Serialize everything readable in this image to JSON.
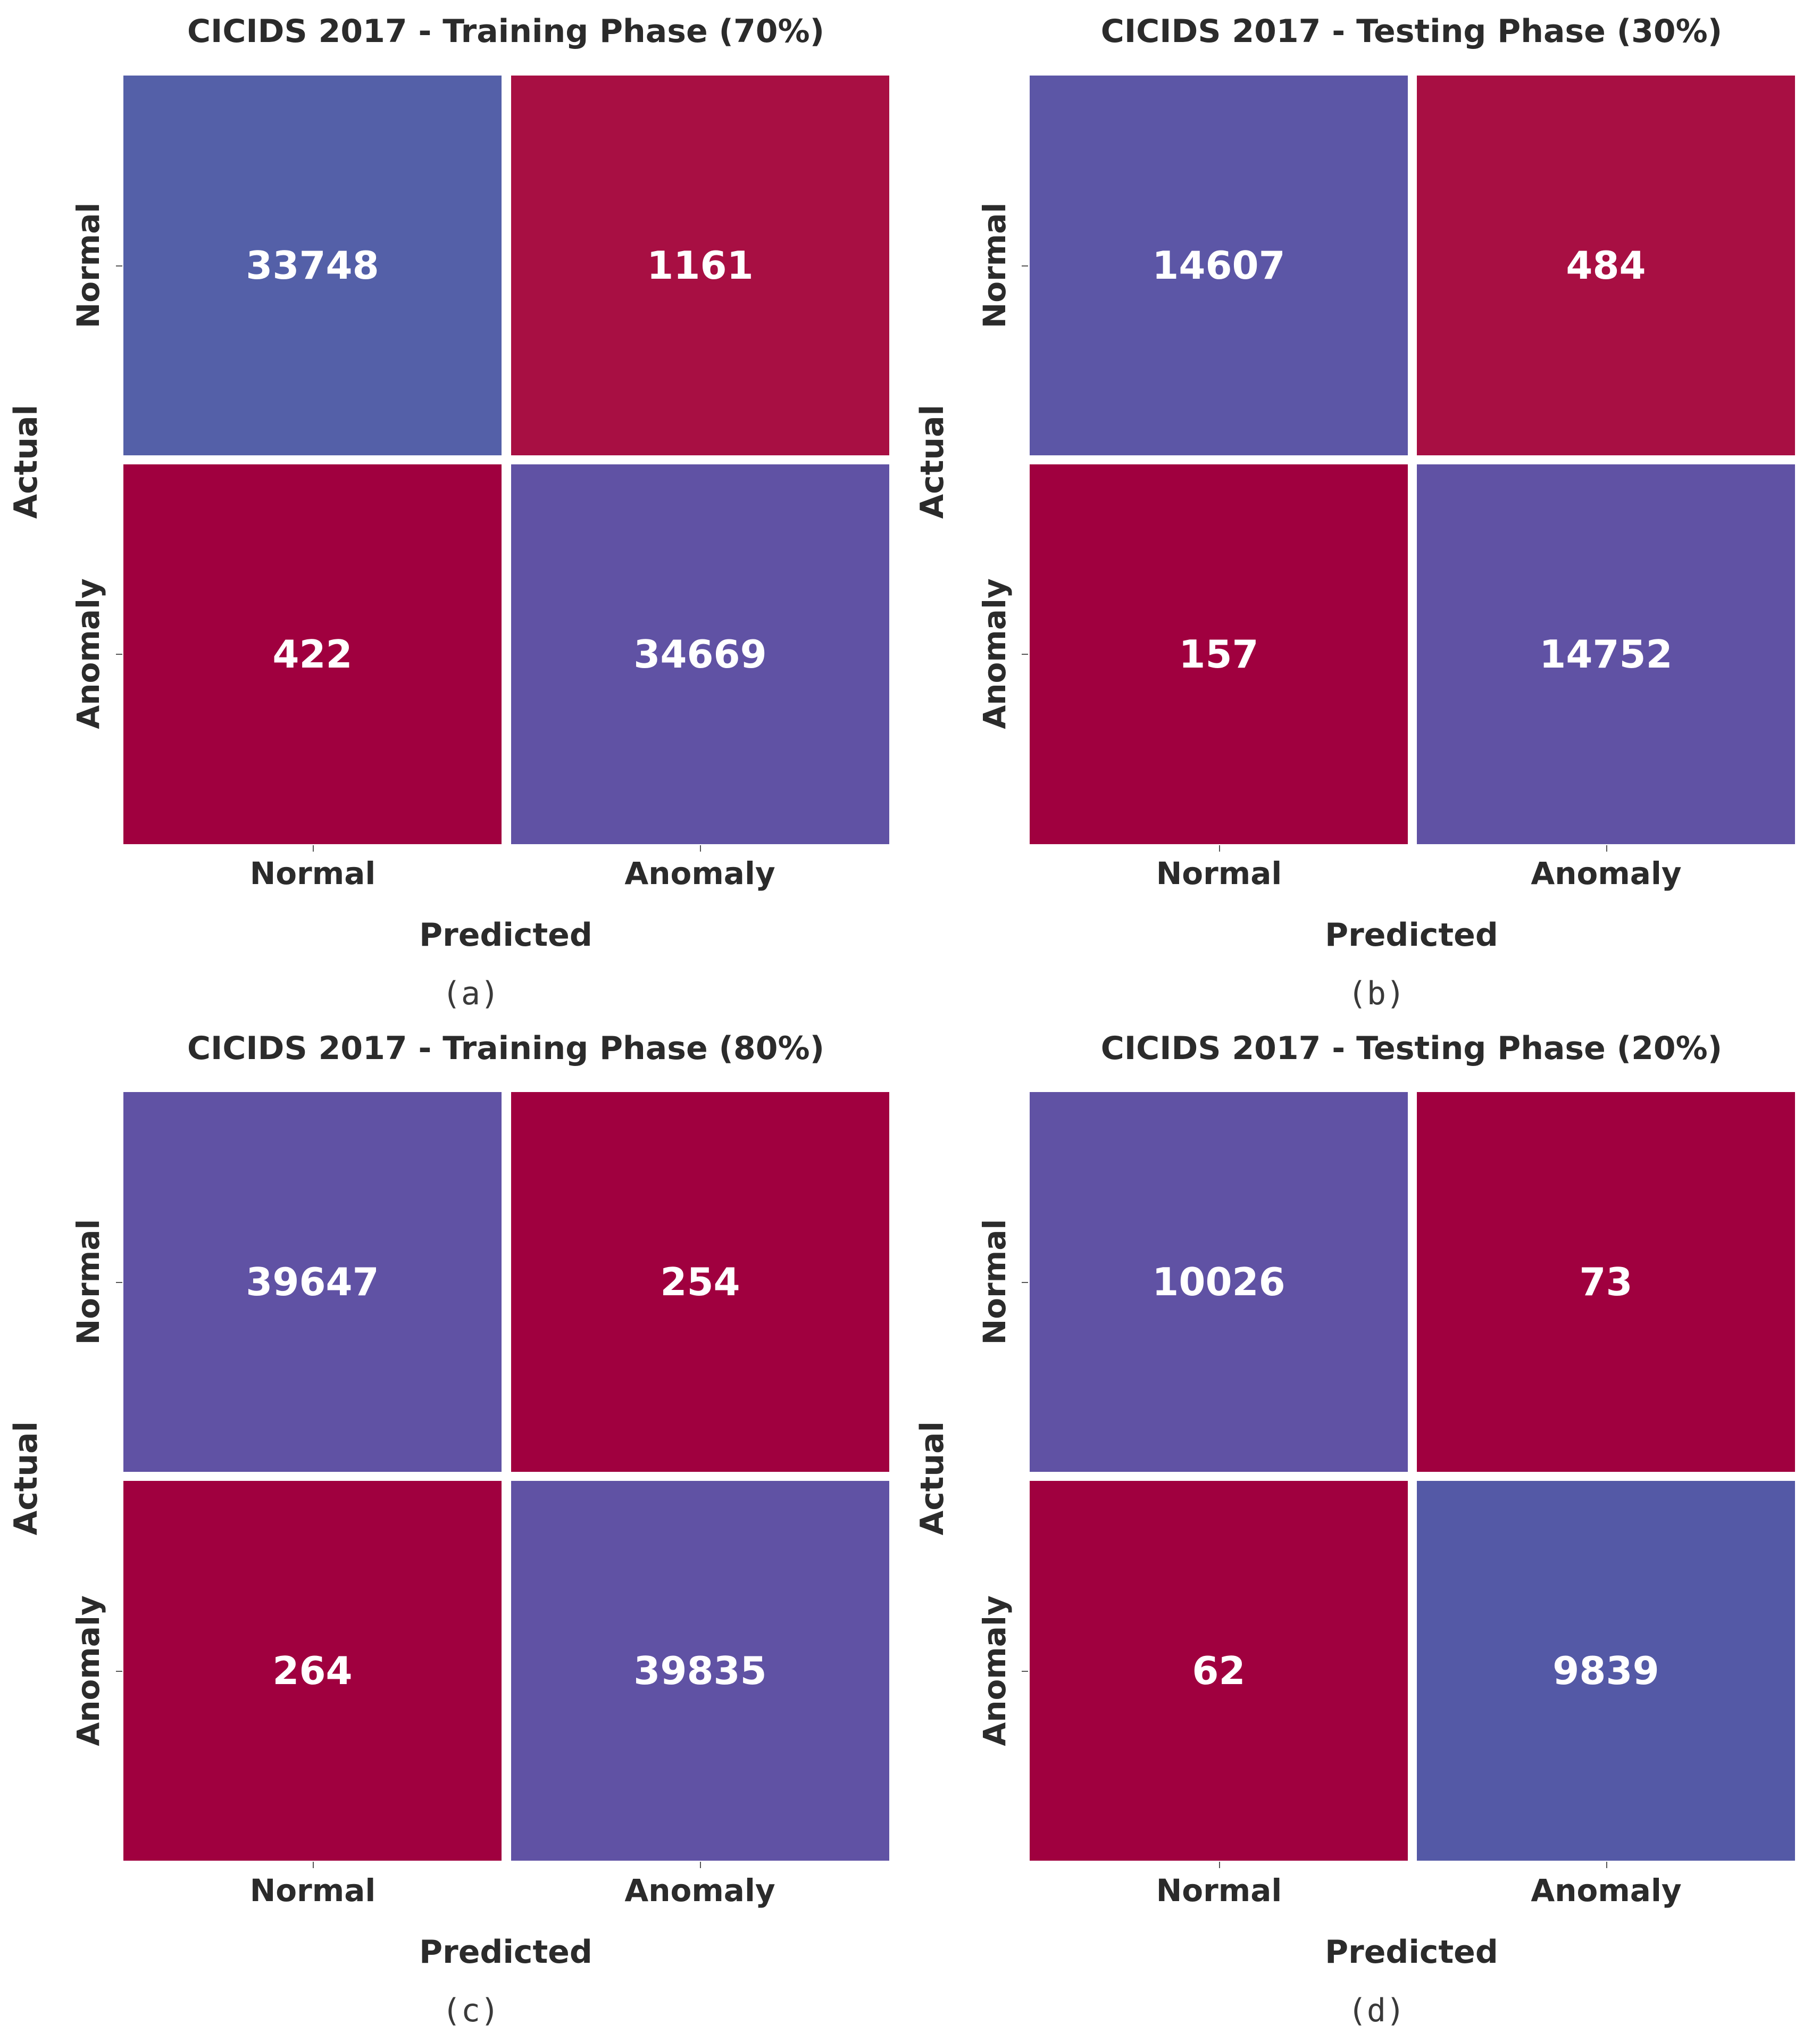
{
  "chart_data": [
    {
      "type": "heatmap",
      "title": "CICIDS 2017 - Training Phase (70%)",
      "caption": "(a)",
      "xlabel": "Predicted",
      "ylabel": "Actual",
      "x_categories": [
        "Normal",
        "Anomaly"
      ],
      "y_categories": [
        "Normal",
        "Anomaly"
      ],
      "values": [
        [
          33748,
          1161
        ],
        [
          422,
          34669
        ]
      ],
      "cell_colors": [
        [
          "#5460a8",
          "#a80f43"
        ],
        [
          "#a0003f",
          "#6052a4"
        ]
      ]
    },
    {
      "type": "heatmap",
      "title": "CICIDS 2017 - Testing Phase (30%)",
      "caption": "(b)",
      "xlabel": "Predicted",
      "ylabel": "Actual",
      "x_categories": [
        "Normal",
        "Anomaly"
      ],
      "y_categories": [
        "Normal",
        "Anomaly"
      ],
      "values": [
        [
          14607,
          484
        ],
        [
          157,
          14752
        ]
      ],
      "cell_colors": [
        [
          "#5c56a6",
          "#a80f43"
        ],
        [
          "#a0003f",
          "#6052a4"
        ]
      ]
    },
    {
      "type": "heatmap",
      "title": "CICIDS 2017 - Training Phase (80%)",
      "caption": "(c)",
      "xlabel": "Predicted",
      "ylabel": "Actual",
      "x_categories": [
        "Normal",
        "Anomaly"
      ],
      "y_categories": [
        "Normal",
        "Anomaly"
      ],
      "values": [
        [
          39647,
          254
        ],
        [
          264,
          39835
        ]
      ],
      "cell_colors": [
        [
          "#6052a4",
          "#a0003f"
        ],
        [
          "#a0003f",
          "#6052a4"
        ]
      ]
    },
    {
      "type": "heatmap",
      "title": "CICIDS 2017 - Testing Phase (20%)",
      "caption": "(d)",
      "xlabel": "Predicted",
      "ylabel": "Actual",
      "x_categories": [
        "Normal",
        "Anomaly"
      ],
      "y_categories": [
        "Normal",
        "Anomaly"
      ],
      "values": [
        [
          10026,
          73
        ],
        [
          62,
          9839
        ]
      ],
      "cell_colors": [
        [
          "#6052a4",
          "#a0003f"
        ],
        [
          "#a0003f",
          "#5459a6"
        ]
      ]
    }
  ]
}
